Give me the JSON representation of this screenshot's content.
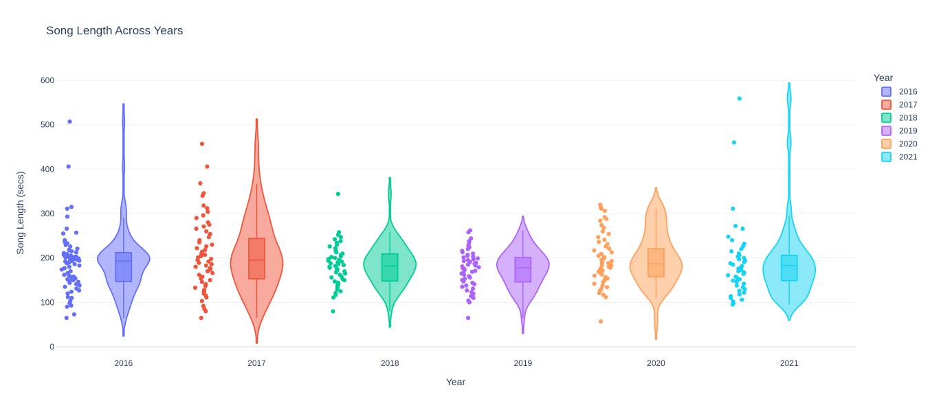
{
  "chart_data": {
    "type": "violin",
    "title": "Song Length Across Years",
    "xlabel": "Year",
    "ylabel": "Song Length (secs)",
    "ylim": [
      0,
      600
    ],
    "yticks": [
      0,
      100,
      200,
      300,
      400,
      500,
      600
    ],
    "categories": [
      "2016",
      "2017",
      "2018",
      "2019",
      "2020",
      "2021"
    ],
    "legend": {
      "title": "Year",
      "position": "top-right"
    },
    "grid": true,
    "series": [
      {
        "name": "2016",
        "color": "#636efa",
        "box": {
          "q1": 147,
          "median": 193,
          "q3": 212,
          "whisker_low": 65,
          "whisker_high": 291
        },
        "range": [
          24,
          547
        ],
        "points": [
          507,
          406,
          315,
          311,
          293,
          266,
          257,
          255,
          240,
          236,
          233,
          229,
          226,
          221,
          218,
          215,
          213,
          211,
          209,
          207,
          206,
          205,
          204,
          203,
          202,
          201,
          200,
          199,
          198,
          197,
          196,
          195,
          194,
          193,
          192,
          190,
          188,
          186,
          183,
          180,
          177,
          174,
          170,
          166,
          162,
          160,
          158,
          156,
          154,
          152,
          150,
          148,
          146,
          144,
          141,
          138,
          135,
          131,
          127,
          124,
          120,
          112,
          110,
          103,
          98,
          93,
          90,
          73,
          65
        ]
      },
      {
        "name": "2017",
        "color": "#ef553b",
        "box": {
          "q1": 153,
          "median": 195,
          "q3": 244,
          "whisker_low": 65,
          "whisker_high": 367
        },
        "range": [
          8,
          513
        ],
        "points": [
          457,
          406,
          368,
          346,
          340,
          318,
          312,
          304,
          296,
          290,
          280,
          275,
          271,
          266,
          260,
          254,
          247,
          240,
          235,
          230,
          226,
          222,
          218,
          214,
          210,
          207,
          204,
          201,
          198,
          195,
          192,
          189,
          186,
          183,
          180,
          177,
          174,
          170,
          166,
          162,
          158,
          154,
          150,
          146,
          141,
          137,
          133,
          128,
          124,
          120,
          115,
          111,
          103,
          92,
          85,
          80,
          65
        ]
      },
      {
        "name": "2018",
        "color": "#00cc96",
        "box": {
          "q1": 148,
          "median": 182,
          "q3": 209,
          "whisker_low": 80,
          "whisker_high": 258
        },
        "range": [
          44,
          381
        ],
        "points": [
          344,
          258,
          252,
          247,
          242,
          238,
          234,
          230,
          226,
          222,
          219,
          216,
          213,
          210,
          207,
          204,
          202,
          200,
          198,
          196,
          194,
          192,
          190,
          188,
          186,
          184,
          182,
          180,
          178,
          176,
          174,
          172,
          170,
          168,
          165,
          162,
          159,
          156,
          153,
          150,
          147,
          144,
          141,
          137,
          133,
          129,
          125,
          121,
          117,
          111,
          80
        ]
      },
      {
        "name": "2019",
        "color": "#ab63fa",
        "box": {
          "q1": 146,
          "median": 178,
          "q3": 201,
          "whisker_low": 65,
          "whisker_high": 262
        },
        "range": [
          30,
          294
        ],
        "points": [
          262,
          258,
          244,
          238,
          233,
          228,
          224,
          220,
          216,
          213,
          210,
          207,
          205,
          203,
          201,
          199,
          197,
          195,
          193,
          191,
          189,
          187,
          185,
          183,
          181,
          179,
          177,
          175,
          173,
          171,
          169,
          167,
          165,
          162,
          159,
          156,
          153,
          150,
          147,
          144,
          141,
          138,
          135,
          131,
          127,
          123,
          119,
          114,
          110,
          104,
          100,
          65
        ]
      },
      {
        "name": "2020",
        "color": "#ffa15a",
        "box": {
          "q1": 158,
          "median": 187,
          "q3": 221,
          "whisker_low": 110,
          "whisker_high": 311
        },
        "range": [
          17,
          358
        ],
        "points": [
          320,
          314,
          311,
          306,
          292,
          288,
          284,
          274,
          268,
          260,
          254,
          247,
          241,
          236,
          231,
          226,
          221,
          217,
          213,
          209,
          205,
          202,
          199,
          196,
          193,
          190,
          188,
          186,
          184,
          182,
          180,
          178,
          175,
          172,
          169,
          166,
          163,
          160,
          157,
          154,
          150,
          146,
          142,
          138,
          134,
          130,
          126,
          121,
          117,
          112,
          57
        ]
      },
      {
        "name": "2021",
        "color": "#19d3f3",
        "box": {
          "q1": 149,
          "median": 183,
          "q3": 206,
          "whisker_low": 95,
          "whisker_high": 295
        },
        "range": [
          60,
          594
        ],
        "points": [
          559,
          460,
          311,
          272,
          266,
          248,
          240,
          232,
          226,
          220,
          215,
          210,
          206,
          203,
          200,
          197,
          194,
          191,
          188,
          185,
          182,
          179,
          176,
          173,
          170,
          167,
          164,
          161,
          158,
          155,
          152,
          149,
          146,
          142,
          138,
          134,
          130,
          126,
          122,
          118,
          114,
          110,
          106,
          102,
          98,
          95
        ]
      }
    ]
  }
}
